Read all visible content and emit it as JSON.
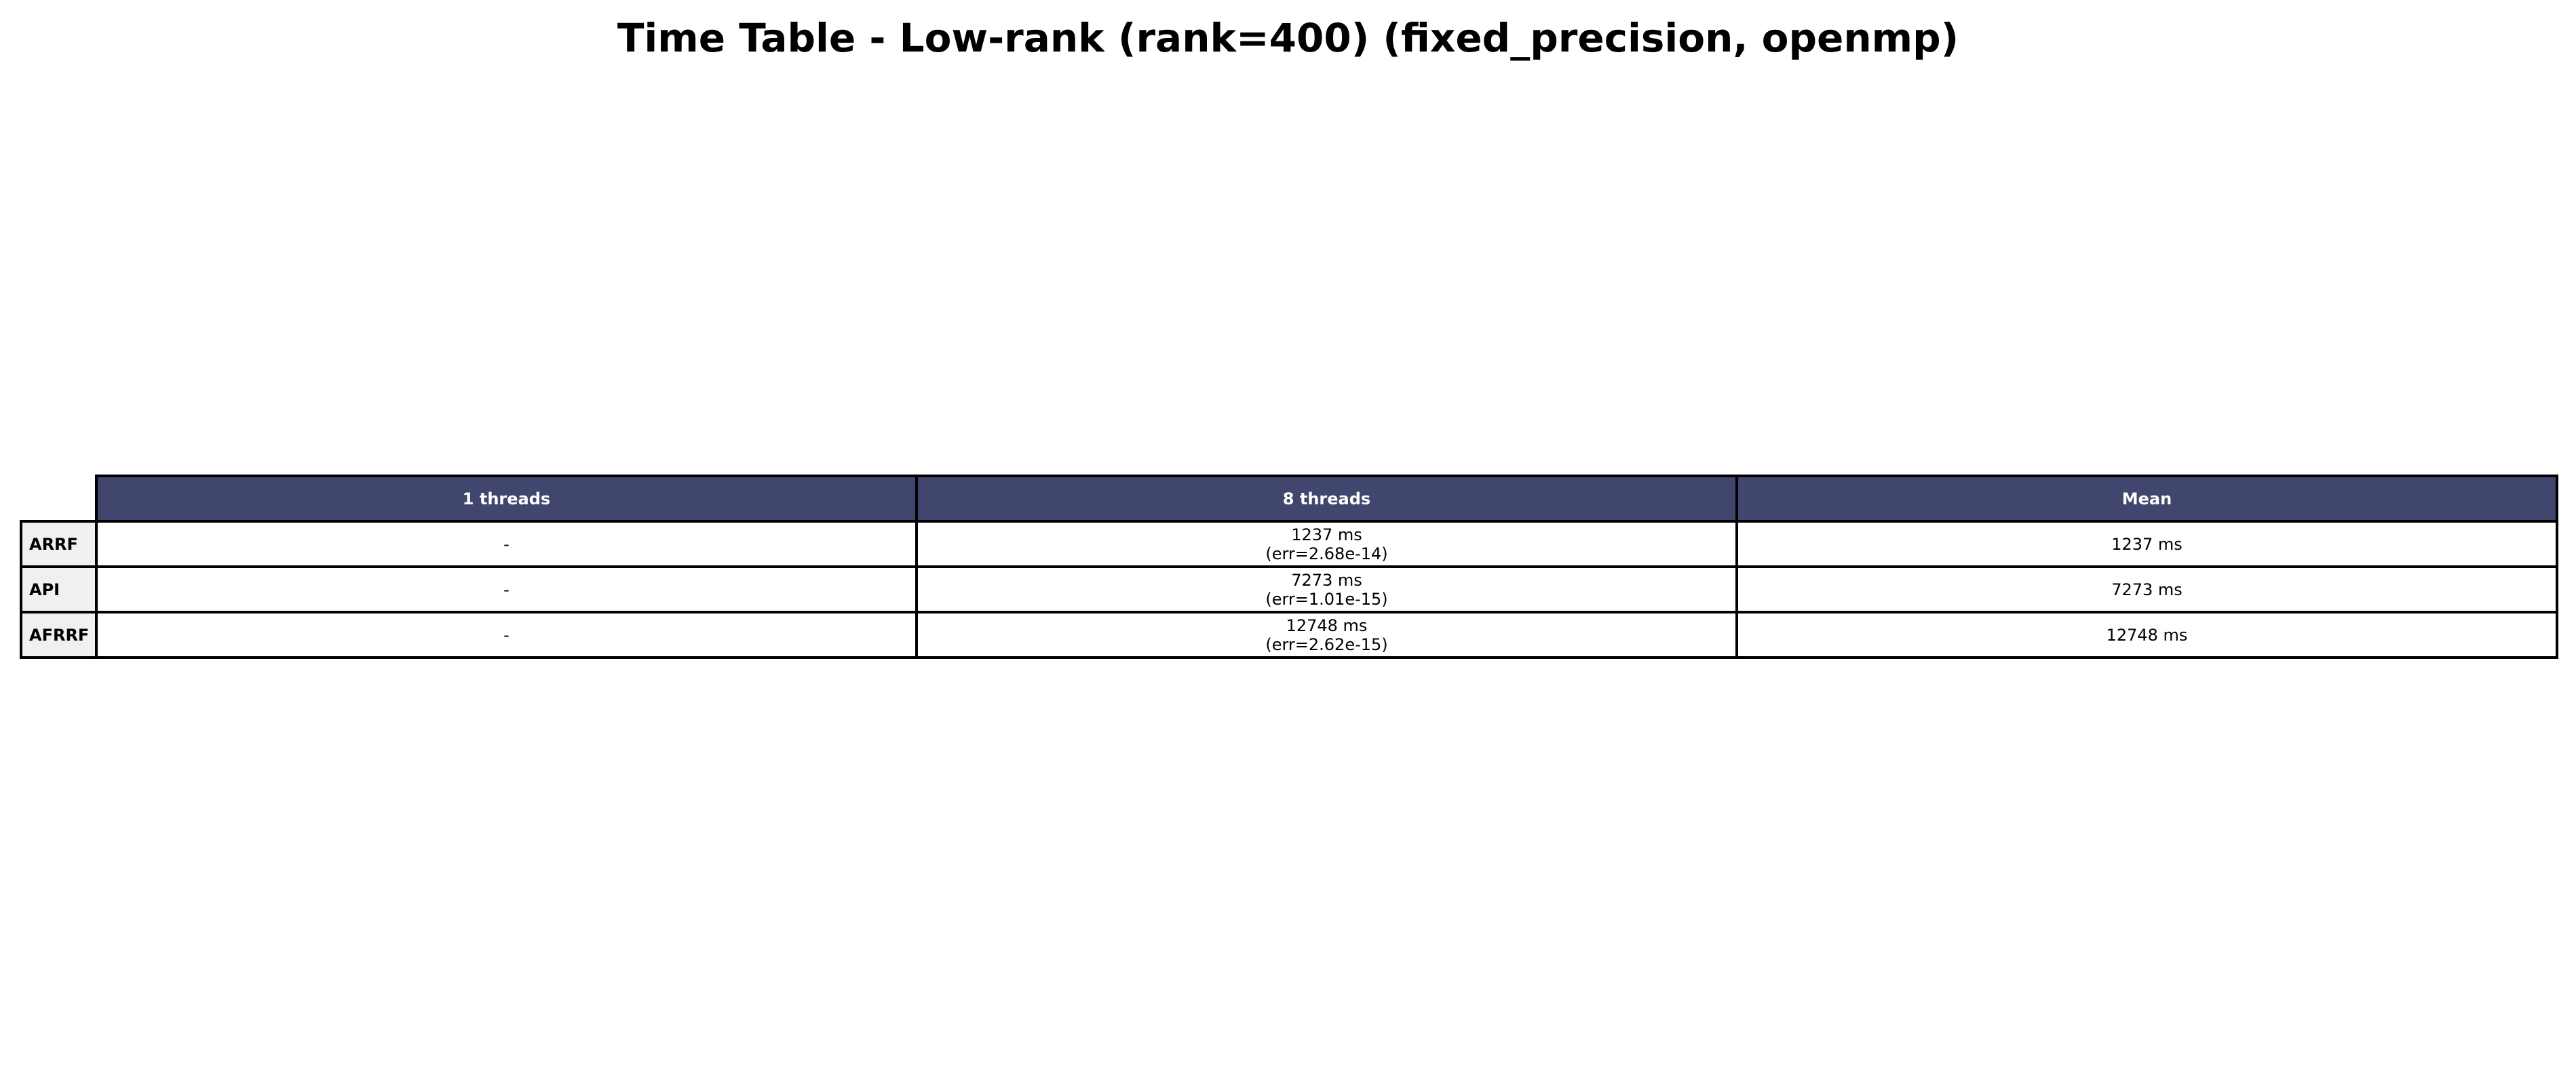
{
  "chart_data": {
    "type": "table",
    "title": "Time Table - Low-rank (rank=400) (fixed_precision, openmp)",
    "columns": [
      "1 threads",
      "8 threads",
      "Mean"
    ],
    "rows": [
      {
        "label": "ARRF",
        "cells": [
          {
            "value": "-",
            "err": ""
          },
          {
            "value": "1237 ms",
            "err": "(err=2.68e-14)"
          },
          {
            "value": "1237 ms",
            "err": ""
          }
        ]
      },
      {
        "label": "API",
        "cells": [
          {
            "value": "-",
            "err": ""
          },
          {
            "value": "7273 ms",
            "err": "(err=1.01e-15)"
          },
          {
            "value": "7273 ms",
            "err": ""
          }
        ]
      },
      {
        "label": "AFRRF",
        "cells": [
          {
            "value": "-",
            "err": ""
          },
          {
            "value": "12748 ms",
            "err": "(err=2.62e-15)"
          },
          {
            "value": "12748 ms",
            "err": ""
          }
        ]
      }
    ],
    "colors": {
      "header_background": "#40466e",
      "header_text": "#ffffff",
      "row_header_background": "#f0f0f0",
      "cell_background": "#ffffff",
      "border": "#000000"
    }
  }
}
